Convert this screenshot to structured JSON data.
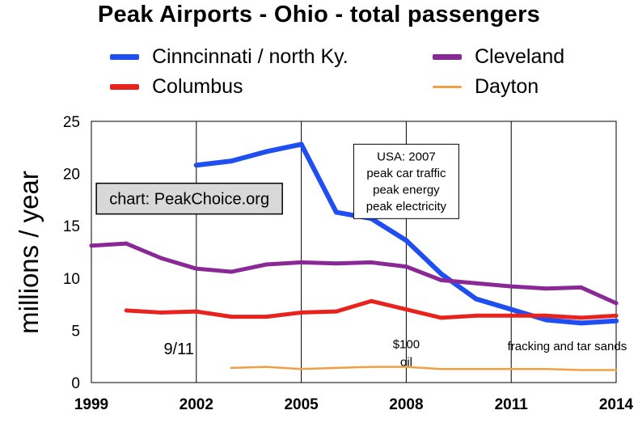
{
  "chart_data": {
    "type": "line",
    "title": "Peak Airports - Ohio - total passengers",
    "ylabel": "millions / year",
    "xlabel": "",
    "xlim": [
      1999,
      2014
    ],
    "ylim": [
      0,
      25
    ],
    "x_ticks": [
      "1999",
      "2002",
      "2005",
      "2008",
      "2011",
      "2014"
    ],
    "y_ticks": [
      "0",
      "5",
      "10",
      "15",
      "20",
      "25"
    ],
    "grid": "vertical",
    "legend": "top",
    "series": [
      {
        "name": "Cinncinnati / north Ky.",
        "color": "#1f4ff0",
        "x": [
          2002,
          2003,
          2004,
          2005,
          2006,
          2007,
          2008,
          2009,
          2010,
          2011,
          2012,
          2013,
          2014
        ],
        "values": [
          20.8,
          21.2,
          22.1,
          22.8,
          16.3,
          15.7,
          13.6,
          10.4,
          8.0,
          7.0,
          6.0,
          5.7,
          5.9
        ]
      },
      {
        "name": "Cleveland",
        "color": "#8a2896",
        "x": [
          1999,
          2000,
          2001,
          2002,
          2003,
          2004,
          2005,
          2006,
          2007,
          2008,
          2009,
          2010,
          2011,
          2012,
          2013,
          2014
        ],
        "values": [
          13.1,
          13.3,
          11.9,
          10.9,
          10.6,
          11.3,
          11.5,
          11.4,
          11.5,
          11.1,
          9.8,
          9.5,
          9.2,
          9.0,
          9.1,
          7.6
        ]
      },
      {
        "name": "Columbus",
        "color": "#e8231e",
        "x": [
          2000,
          2001,
          2002,
          2003,
          2004,
          2005,
          2006,
          2007,
          2008,
          2009,
          2010,
          2011,
          2012,
          2013,
          2014
        ],
        "values": [
          6.9,
          6.7,
          6.8,
          6.3,
          6.3,
          6.7,
          6.8,
          7.8,
          7.0,
          6.2,
          6.4,
          6.4,
          6.4,
          6.2,
          6.4
        ]
      },
      {
        "name": "Dayton",
        "color": "#f0a040",
        "x": [
          2003,
          2004,
          2005,
          2006,
          2007,
          2008,
          2009,
          2010,
          2011,
          2012,
          2013,
          2014
        ],
        "values": [
          1.4,
          1.5,
          1.3,
          1.4,
          1.5,
          1.5,
          1.3,
          1.3,
          1.3,
          1.3,
          1.2,
          1.2
        ]
      }
    ],
    "annotations": [
      {
        "id": "usa-2007-box",
        "x": 2008.0,
        "y": 22.5,
        "lines": [
          "USA: 2007",
          "peak car traffic",
          "peak energy",
          "peak electricity"
        ]
      },
      {
        "id": "peakchoice-credit",
        "x": 2001.8,
        "y": 17.6,
        "lines": [
          "chart: PeakChoice.org"
        ]
      },
      {
        "id": "nine-eleven",
        "x": 2001.5,
        "y": 2.7,
        "lines": [
          "9/11"
        ]
      },
      {
        "id": "oil-100",
        "x": 2008.0,
        "y": 3.3,
        "lines": [
          "$100",
          "oil"
        ]
      },
      {
        "id": "fracking",
        "x": 2012.6,
        "y": 3.1,
        "lines": [
          "fracking and tar sands"
        ]
      }
    ]
  }
}
